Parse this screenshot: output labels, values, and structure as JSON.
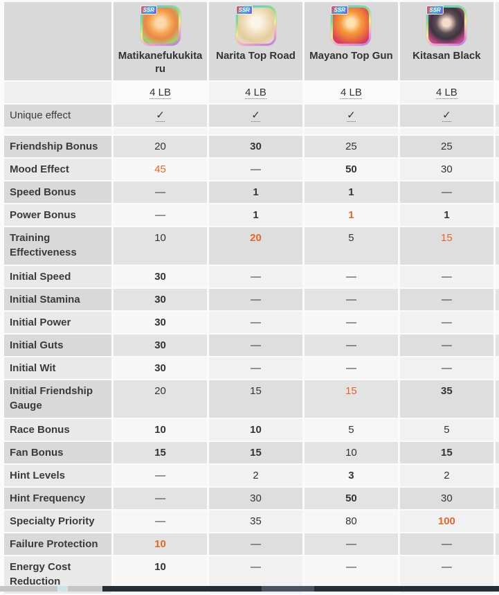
{
  "header": {
    "unique_effect_label": "Unique effect",
    "cards": [
      {
        "name": "Matikanefukukitaru",
        "rarity": "SSR",
        "limit_break": "4 LB",
        "unique_effect": "✓"
      },
      {
        "name": "Narita Top Road",
        "rarity": "SSR",
        "limit_break": "4 LB",
        "unique_effect": "✓"
      },
      {
        "name": "Mayano Top Gun",
        "rarity": "SSR",
        "limit_break": "4 LB",
        "unique_effect": "✓"
      },
      {
        "name": "Kitasan Black",
        "rarity": "SSR",
        "limit_break": "4 LB",
        "unique_effect": "✓"
      }
    ]
  },
  "stats": {
    "rows": [
      {
        "label": "Friendship Bonus",
        "values": [
          "20",
          "30",
          "25",
          "25"
        ]
      },
      {
        "label": "Mood Effect",
        "values": [
          "45",
          "—",
          "50",
          "30"
        ]
      },
      {
        "label": "Speed Bonus",
        "values": [
          "—",
          "1",
          "1",
          "—"
        ]
      },
      {
        "label": "Power Bonus",
        "values": [
          "—",
          "1",
          "1",
          "1"
        ]
      },
      {
        "label": "Training Effectiveness",
        "values": [
          "10",
          "20",
          "5",
          "15"
        ]
      },
      {
        "label": "Initial Speed",
        "values": [
          "30",
          "—",
          "—",
          "—"
        ]
      },
      {
        "label": "Initial Stamina",
        "values": [
          "30",
          "—",
          "—",
          "—"
        ]
      },
      {
        "label": "Initial Power",
        "values": [
          "30",
          "—",
          "—",
          "—"
        ]
      },
      {
        "label": "Initial Guts",
        "values": [
          "30",
          "—",
          "—",
          "—"
        ]
      },
      {
        "label": "Initial Wit",
        "values": [
          "30",
          "—",
          "—",
          "—"
        ]
      },
      {
        "label": "Initial Friendship Gauge",
        "values": [
          "20",
          "15",
          "15",
          "35"
        ]
      },
      {
        "label": "Race Bonus",
        "values": [
          "10",
          "10",
          "5",
          "5"
        ]
      },
      {
        "label": "Fan Bonus",
        "values": [
          "15",
          "15",
          "10",
          "15"
        ]
      },
      {
        "label": "Hint Levels",
        "values": [
          "—",
          "2",
          "3",
          "2"
        ]
      },
      {
        "label": "Hint Frequency",
        "values": [
          "—",
          "30",
          "50",
          "30"
        ]
      },
      {
        "label": "Specialty Priority",
        "values": [
          "—",
          "35",
          "80",
          "100"
        ]
      },
      {
        "label": "Failure Protection",
        "values": [
          "10",
          "—",
          "—",
          "—"
        ]
      },
      {
        "label": "Energy Cost Reduction",
        "values": [
          "10",
          "—",
          "—",
          "—"
        ]
      }
    ]
  },
  "colors": {
    "highlight_orange": "#e2662b",
    "header_cell_bg": "#d9d9d9",
    "scrollbar_dark": "#232e38",
    "scrollbar_thumb": "#47535e"
  }
}
